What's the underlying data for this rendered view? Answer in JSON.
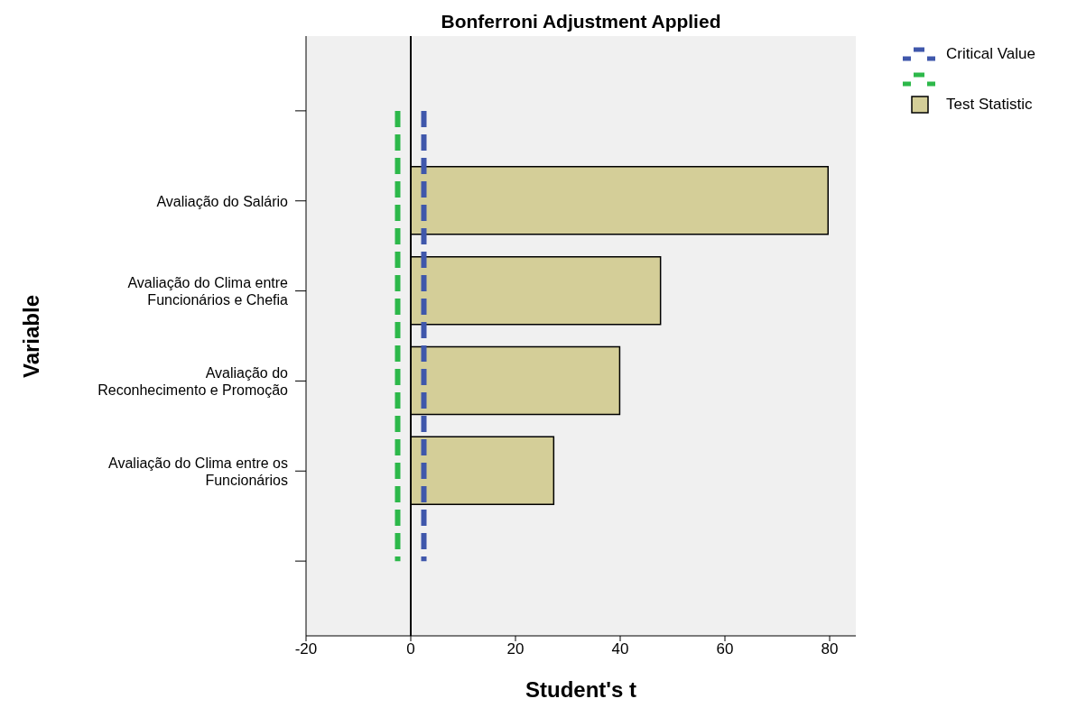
{
  "chart_data": {
    "type": "bar",
    "orientation": "horizontal",
    "title": "Bonferroni Adjustment Applied",
    "xlabel": "Student's t",
    "ylabel": "Variable",
    "categories": [
      null,
      "Avaliação do Salário",
      "Avaliação do Clima entre\nFuncionários e Chefia",
      "Avaliação do\nReconhecimento e Promoção",
      "Avaliação do Clima entre os\nFuncionários",
      null
    ],
    "series": [
      {
        "name": "Critical Value",
        "type": "line",
        "color": "#3f57ab",
        "values": [
          2.5,
          2.5,
          2.5,
          2.5,
          2.5,
          2.5
        ]
      },
      {
        "type": "line",
        "color": "#2db84a",
        "values": [
          -2.5,
          -2.5,
          -2.5,
          -2.5,
          -2.5,
          -2.5
        ]
      },
      {
        "name": "Test Statistic",
        "color": "#d4ce98",
        "values": [
          null,
          79.7,
          47.7,
          39.9,
          27.3,
          null
        ]
      }
    ],
    "xlim": [
      -20,
      85
    ],
    "xticks": [
      -20,
      0,
      20,
      40,
      60,
      80
    ],
    "ref_lines": [
      {
        "axis": "x",
        "value": 0,
        "color": "#000000",
        "line_style": "solid"
      }
    ],
    "line_style": "dashed",
    "marker": "none",
    "legend": "top right",
    "grid": false
  }
}
